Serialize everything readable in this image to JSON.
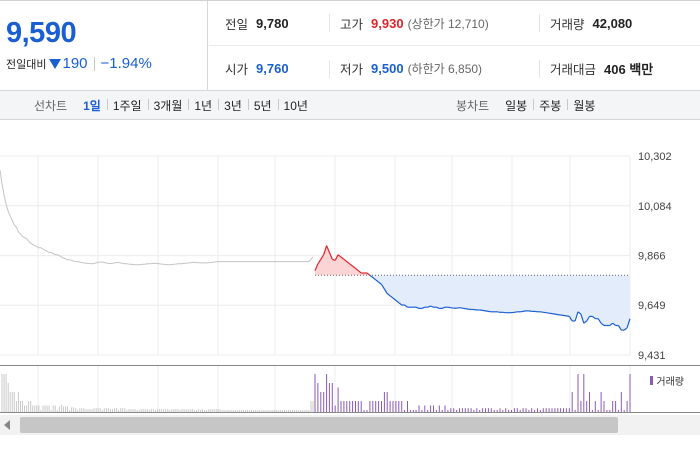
{
  "summary": {
    "price": "9,590",
    "change_label": "전일대비",
    "change_icon": "down-triangle-icon",
    "change_value": "190",
    "change_pct": "−1.94%",
    "colors": {
      "up": "#e0242b",
      "down": "#1a5fd1"
    }
  },
  "stats": {
    "prev_label": "전일",
    "prev_value": "9,780",
    "high_label": "고가",
    "high_value": "9,930",
    "high_sub": "(상한가 12,710)",
    "volume_label": "거래량",
    "volume_value": "42,080",
    "open_label": "시가",
    "open_value": "9,760",
    "low_label": "저가",
    "low_value": "9,500",
    "low_sub": "(하한가 6,850)",
    "amount_label": "거래대금",
    "amount_value": "406 백만"
  },
  "tabs": {
    "line_label": "선차트",
    "line_items": [
      "1일",
      "1주일",
      "3개월",
      "1년",
      "3년",
      "5년",
      "10년"
    ],
    "line_active": 0,
    "candle_label": "봉차트",
    "candle_items": [
      "일봉",
      "주봉",
      "월봉"
    ]
  },
  "chart_data": {
    "type": "line",
    "y_ticks": [
      "10,302",
      "10,084",
      "9,866",
      "9,649",
      "9,431"
    ],
    "ylim": [
      9431,
      10302
    ],
    "prev_close": 9780,
    "grid": true,
    "series": [
      {
        "segment": "previous",
        "values": [
          10240,
          10180,
          10130,
          10090,
          10060,
          10040,
          10020,
          10000,
          9990,
          9970,
          9960,
          9950,
          9945,
          9940,
          9930,
          9920,
          9915,
          9910,
          9905,
          9900,
          9900,
          9895,
          9890,
          9885,
          9880,
          9880,
          9875,
          9870,
          9870,
          9866,
          9860,
          9856,
          9852,
          9848,
          9848,
          9845,
          9842,
          9840,
          9840,
          9838,
          9836,
          9834,
          9833,
          9832,
          9831,
          9830,
          9832,
          9834,
          9836,
          9838,
          9838,
          9836,
          9834,
          9832,
          9831,
          9832,
          9834,
          9836,
          9836,
          9834,
          9832,
          9830,
          9830,
          9829,
          9828,
          9827,
          9826,
          9826,
          9826,
          9827,
          9828,
          9829,
          9830,
          9830,
          9831,
          9832,
          9832,
          9831,
          9830,
          9829,
          9828,
          9827,
          9826,
          9826,
          9827,
          9828,
          9829,
          9830,
          9830,
          9831,
          9832,
          9833,
          9834,
          9835,
          9836,
          9836,
          9836,
          9835,
          9835,
          9834,
          9834,
          9834,
          9835,
          9836,
          9837,
          9838,
          9839,
          9840,
          9840,
          9840,
          9840,
          9840,
          9840,
          9840,
          9840,
          9840,
          9840,
          9840,
          9840,
          9840,
          9840,
          9840,
          9840,
          9840,
          9840,
          9840,
          9840,
          9840,
          9840,
          9840,
          9840,
          9840,
          9840,
          9840,
          9840,
          9840,
          9840,
          9840,
          9840,
          9840,
          9840,
          9840,
          9840,
          9840,
          9840,
          9840,
          9840,
          9840,
          9840,
          9840,
          9840,
          9840,
          9850,
          9860
        ]
      },
      {
        "segment": "today",
        "values": [
          9800,
          9830,
          9850,
          9870,
          9910,
          9880,
          9850,
          9845,
          9870,
          9860,
          9850,
          9840,
          9830,
          9820,
          9810,
          9800,
          9790,
          9790,
          9790,
          9780,
          9770,
          9760,
          9750,
          9740,
          9720,
          9700,
          9690,
          9680,
          9670,
          9660,
          9650,
          9650,
          9640,
          9640,
          9640,
          9640,
          9635,
          9635,
          9640,
          9640,
          9645,
          9640,
          9640,
          9635,
          9635,
          9640,
          9640,
          9638,
          9636,
          9636,
          9638,
          9636,
          9634,
          9632,
          9630,
          9630,
          9628,
          9628,
          9626,
          9624,
          9622,
          9620,
          9620,
          9620,
          9618,
          9618,
          9616,
          9616,
          9616,
          9618,
          9620,
          9620,
          9622,
          9624,
          9624,
          9622,
          9622,
          9620,
          9620,
          9618,
          9616,
          9614,
          9612,
          9610,
          9608,
          9606,
          9604,
          9602,
          9600,
          9580,
          9580,
          9620,
          9610,
          9570,
          9580,
          9600,
          9600,
          9590,
          9590,
          9570,
          9560,
          9560,
          9560,
          9570,
          9560,
          9560,
          9540,
          9540,
          9550,
          9590
        ]
      }
    ],
    "volume_legend": "거래량"
  }
}
